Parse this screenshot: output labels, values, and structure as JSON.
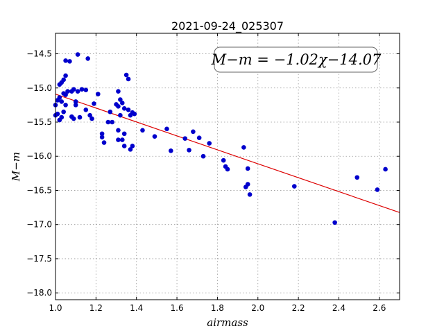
{
  "chart_data": {
    "type": "scatter",
    "title": "2021-09-24_025307",
    "xlabel": "airmass",
    "ylabel": "M−m",
    "xlim": [
      1.0,
      2.7
    ],
    "ylim": [
      -18.1,
      -14.2
    ],
    "y_inverted": true,
    "xticks": [
      1.0,
      1.2,
      1.4,
      1.6,
      1.8,
      2.0,
      2.2,
      2.4,
      2.6
    ],
    "xtick_labels": [
      "1.0",
      "1.2",
      "1.4",
      "1.6",
      "1.8",
      "2.0",
      "2.2",
      "2.4",
      "2.6"
    ],
    "yticks": [
      -14.5,
      -15.0,
      -15.5,
      -16.0,
      -16.5,
      -17.0,
      -17.5,
      -18.0
    ],
    "ytick_labels": [
      "−14.5",
      "−15.0",
      "−15.5",
      "−16.0",
      "−16.5",
      "−17.0",
      "−17.5",
      "−18.0"
    ],
    "grid": true,
    "annotation": "M−m = −1.02χ−14.07",
    "colors": {
      "points": "#0000cc",
      "fit_line": "#dd0000"
    },
    "fit": {
      "slope": -1.02,
      "intercept": -14.07
    },
    "points": [
      [
        1.0,
        -15.25
      ],
      [
        1.0,
        -15.4
      ],
      [
        1.01,
        -15.18
      ],
      [
        1.01,
        -15.38
      ],
      [
        1.02,
        -15.47
      ],
      [
        1.02,
        -15.14
      ],
      [
        1.02,
        -14.95
      ],
      [
        1.03,
        -14.92
      ],
      [
        1.03,
        -15.2
      ],
      [
        1.03,
        -15.43
      ],
      [
        1.04,
        -14.88
      ],
      [
        1.04,
        -15.35
      ],
      [
        1.04,
        -15.08
      ],
      [
        1.05,
        -14.82
      ],
      [
        1.05,
        -15.25
      ],
      [
        1.05,
        -14.6
      ],
      [
        1.05,
        -15.1
      ],
      [
        1.06,
        -15.05
      ],
      [
        1.07,
        -14.61
      ],
      [
        1.08,
        -15.05
      ],
      [
        1.08,
        -15.42
      ],
      [
        1.09,
        -15.45
      ],
      [
        1.09,
        -15.02
      ],
      [
        1.1,
        -15.2
      ],
      [
        1.1,
        -15.25
      ],
      [
        1.11,
        -14.51
      ],
      [
        1.11,
        -15.05
      ],
      [
        1.12,
        -15.43
      ],
      [
        1.13,
        -15.02
      ],
      [
        1.15,
        -15.03
      ],
      [
        1.15,
        -15.32
      ],
      [
        1.16,
        -14.57
      ],
      [
        1.17,
        -15.4
      ],
      [
        1.18,
        -15.45
      ],
      [
        1.19,
        -15.23
      ],
      [
        1.21,
        -15.09
      ],
      [
        1.23,
        -15.67
      ],
      [
        1.23,
        -15.72
      ],
      [
        1.24,
        -15.8
      ],
      [
        1.26,
        -15.5
      ],
      [
        1.27,
        -15.35
      ],
      [
        1.28,
        -15.5
      ],
      [
        1.3,
        -15.24
      ],
      [
        1.31,
        -15.05
      ],
      [
        1.31,
        -15.27
      ],
      [
        1.31,
        -15.62
      ],
      [
        1.31,
        -15.76
      ],
      [
        1.32,
        -15.4
      ],
      [
        1.32,
        -15.17
      ],
      [
        1.33,
        -15.76
      ],
      [
        1.33,
        -15.22
      ],
      [
        1.34,
        -15.67
      ],
      [
        1.34,
        -15.3
      ],
      [
        1.34,
        -15.85
      ],
      [
        1.35,
        -14.81
      ],
      [
        1.36,
        -14.87
      ],
      [
        1.36,
        -15.32
      ],
      [
        1.37,
        -15.4
      ],
      [
        1.37,
        -15.9
      ],
      [
        1.38,
        -15.36
      ],
      [
        1.38,
        -15.85
      ],
      [
        1.39,
        -15.38
      ],
      [
        1.43,
        -15.62
      ],
      [
        1.49,
        -15.71
      ],
      [
        1.55,
        -15.6
      ],
      [
        1.57,
        -15.92
      ],
      [
        1.64,
        -15.74
      ],
      [
        1.66,
        -15.91
      ],
      [
        1.68,
        -15.64
      ],
      [
        1.71,
        -15.73
      ],
      [
        1.73,
        -16.0
      ],
      [
        1.76,
        -15.81
      ],
      [
        1.83,
        -16.06
      ],
      [
        1.84,
        -16.15
      ],
      [
        1.85,
        -16.19
      ],
      [
        1.93,
        -15.87
      ],
      [
        1.94,
        -16.45
      ],
      [
        1.95,
        -16.41
      ],
      [
        1.95,
        -16.18
      ],
      [
        1.96,
        -16.56
      ],
      [
        2.18,
        -16.44
      ],
      [
        2.38,
        -16.97
      ],
      [
        2.49,
        -16.31
      ],
      [
        2.59,
        -16.49
      ],
      [
        2.63,
        -16.19
      ]
    ]
  }
}
